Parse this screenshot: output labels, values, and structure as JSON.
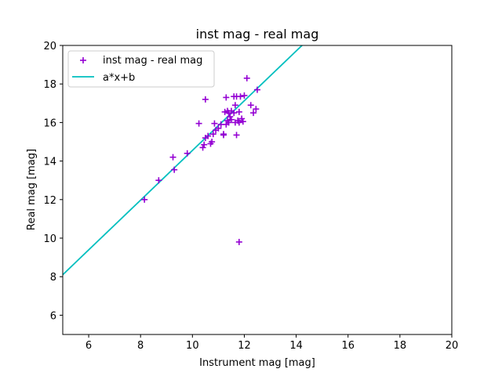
{
  "chart_data": {
    "type": "scatter",
    "title": "inst mag - real mag",
    "xlabel": "Instrument mag [mag]",
    "ylabel": "Real mag [mag]",
    "xlim": [
      5,
      20
    ],
    "ylim": [
      5,
      20
    ],
    "xticks": [
      6,
      8,
      10,
      12,
      14,
      16,
      18,
      20
    ],
    "yticks": [
      6,
      8,
      10,
      12,
      14,
      16,
      18,
      20
    ],
    "grid": false,
    "legend_position": "top-left",
    "series": [
      {
        "name": "inst mag - real mag",
        "kind": "scatter",
        "marker": "plus",
        "color": "#9400d3",
        "x": [
          8.15,
          8.7,
          9.25,
          9.3,
          9.8,
          10.25,
          10.4,
          10.45,
          10.5,
          10.5,
          10.6,
          10.7,
          10.75,
          10.8,
          10.85,
          10.9,
          11.0,
          11.1,
          11.2,
          11.2,
          11.25,
          11.3,
          11.3,
          11.35,
          11.35,
          11.4,
          11.4,
          11.45,
          11.5,
          11.5,
          11.6,
          11.6,
          11.65,
          11.65,
          11.7,
          11.7,
          11.75,
          11.8,
          11.8,
          11.85,
          11.9,
          11.95,
          12.0,
          12.1,
          12.25,
          12.35,
          12.45,
          12.5,
          11.8
        ],
        "y": [
          12.0,
          13.0,
          14.2,
          13.55,
          14.4,
          15.95,
          14.7,
          14.85,
          15.2,
          17.2,
          15.3,
          14.9,
          15.0,
          15.4,
          15.95,
          15.6,
          15.7,
          15.9,
          15.35,
          15.4,
          16.55,
          17.3,
          15.9,
          16.1,
          16.6,
          16.0,
          16.5,
          16.3,
          16.15,
          16.6,
          16.5,
          17.35,
          16.0,
          16.9,
          15.35,
          17.35,
          16.1,
          16.0,
          16.55,
          17.35,
          16.2,
          16.05,
          17.4,
          18.3,
          16.9,
          16.5,
          16.7,
          17.7,
          9.8
        ]
      },
      {
        "name": "a*x+b",
        "kind": "line",
        "color": "#00bfbf",
        "slope": 1.29,
        "intercept": 1.65
      }
    ]
  }
}
